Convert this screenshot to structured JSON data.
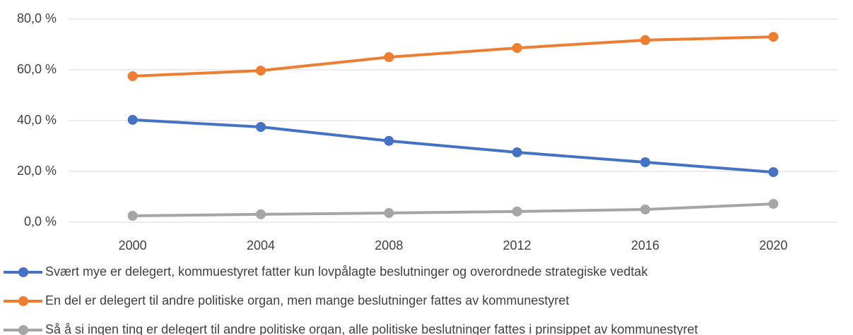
{
  "chart_data": {
    "type": "line",
    "categories": [
      "2000",
      "2004",
      "2008",
      "2012",
      "2016",
      "2020"
    ],
    "series": [
      {
        "name": "Svært mye er delegert, kommuestyret fatter kun lovpålagte beslutninger og overordnede strategiske vedtak",
        "color": "#4472c4",
        "values": [
          40.3,
          37.5,
          32,
          27.5,
          23.6,
          19.7
        ]
      },
      {
        "name": "En del er delegert til andre politiske organ, men mange beslutninger fattes av kommunestyret",
        "color": "#ed7d31",
        "values": [
          57.5,
          59.7,
          65,
          68.6,
          71.7,
          73
        ]
      },
      {
        "name": "Så å si ingen ting er delegert til andre politiske organ, alle politiske beslutninger fattes i prinsippet av kommunestyret",
        "color": "#a5a5a5",
        "values": [
          2.5,
          3.1,
          3.6,
          4.2,
          5,
          7.2
        ]
      }
    ],
    "ylim": [
      0,
      80
    ],
    "yticks": [
      {
        "value": 0,
        "label": "0,0 %"
      },
      {
        "value": 20,
        "label": "20,0 %"
      },
      {
        "value": 40,
        "label": "40,0 %"
      },
      {
        "value": 60,
        "label": "60,0 %"
      },
      {
        "value": 80,
        "label": "80,0 %"
      }
    ],
    "grid": true,
    "legend": "bottom"
  }
}
